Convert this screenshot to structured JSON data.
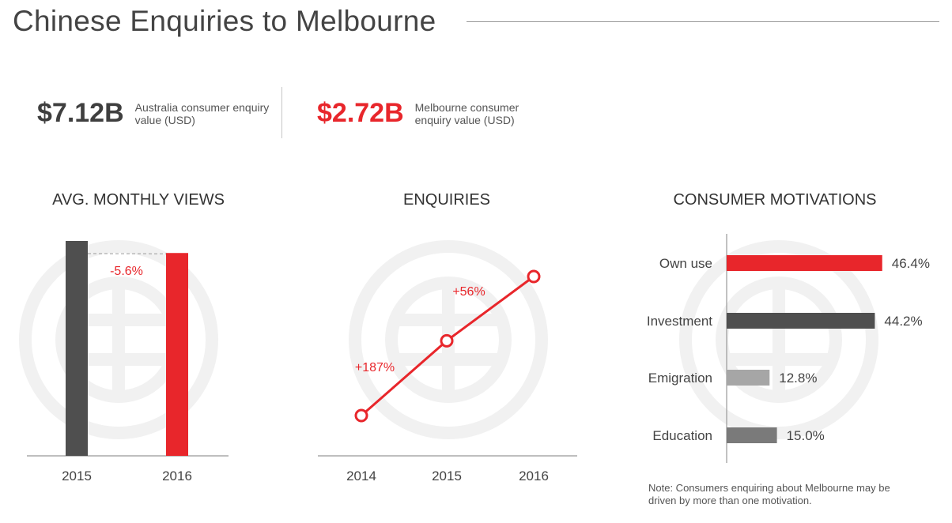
{
  "title": "Chinese Enquiries to Melbourne",
  "stats": {
    "australia": {
      "value": "$7.12B",
      "label": "Australia consumer enquiry value (USD)"
    },
    "melbourne": {
      "value": "$2.72B",
      "label": "Melbourne consumer enquiry value (USD)"
    }
  },
  "colors": {
    "accent": "#e8262b",
    "dark": "#4f4f4f",
    "grey_light": "#a6a6a6",
    "grey_mid": "#7a7a7a",
    "watermark": "#f1f1f1"
  },
  "note": "Note: Consumers enquiring about Melbourne may be driven by more than one motivation.",
  "chart_data": [
    {
      "id": "views",
      "type": "bar",
      "title": "AVG. MONTHLY VIEWS",
      "categories": [
        "2015",
        "2016"
      ],
      "values": [
        100,
        94.4
      ],
      "unit": "index (2015 = 100)",
      "annotations": [
        {
          "text": "-5.6%",
          "between": [
            "2015",
            "2016"
          ]
        }
      ],
      "ylim": [
        0,
        100
      ]
    },
    {
      "id": "enquiries",
      "type": "line",
      "title": "ENQUIRIES",
      "x": [
        "2014",
        "2015",
        "2016"
      ],
      "y": [
        100,
        287,
        447.7
      ],
      "unit": "index (2014 = 100)",
      "annotations": [
        {
          "text": "+187%",
          "between": [
            "2014",
            "2015"
          ]
        },
        {
          "text": "+56%",
          "between": [
            "2015",
            "2016"
          ]
        }
      ],
      "ylim": [
        0,
        500
      ]
    },
    {
      "id": "motivations",
      "type": "bar",
      "orientation": "horizontal",
      "title": "CONSUMER MOTIVATIONS",
      "categories": [
        "Own use",
        "Investment",
        "Emigration",
        "Education"
      ],
      "values": [
        46.4,
        44.2,
        12.8,
        15.0
      ],
      "value_labels": [
        "46.4%",
        "44.2%",
        "12.8%",
        "15.0%"
      ],
      "xlim": [
        0,
        50
      ]
    }
  ]
}
